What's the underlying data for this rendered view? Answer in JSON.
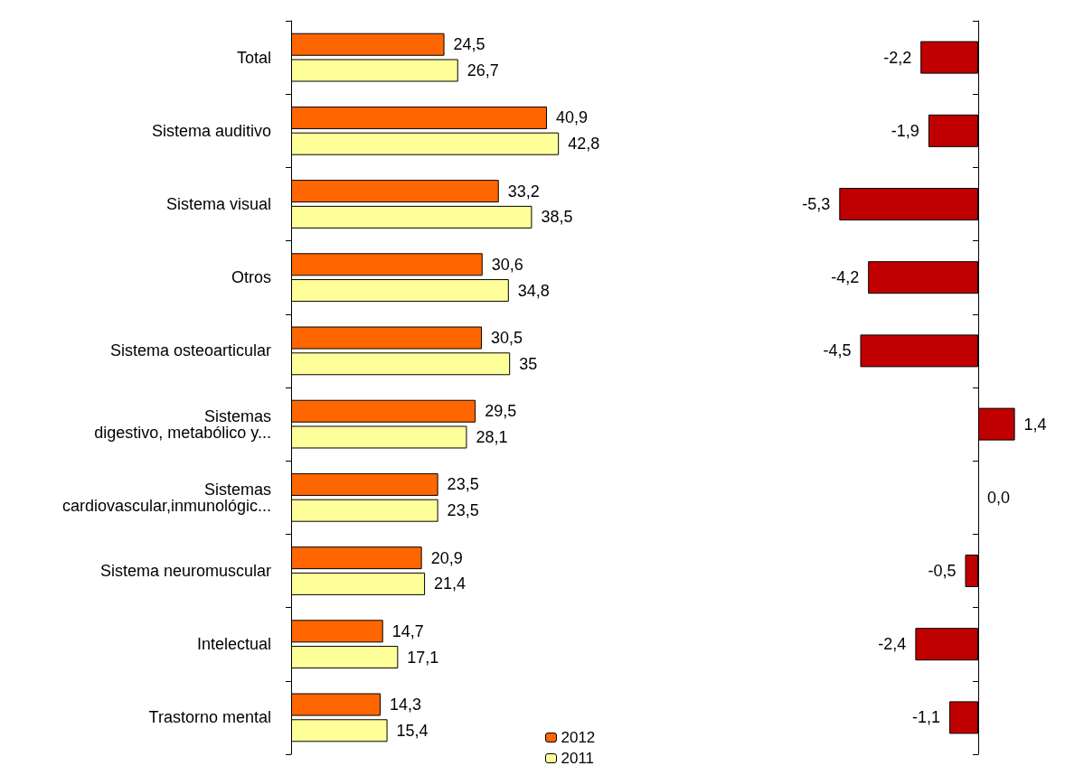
{
  "chart_data": [
    {
      "type": "bar",
      "orientation": "horizontal",
      "categories": [
        "Total",
        "Sistema auditivo",
        "Sistema visual",
        "Otros",
        "Sistema osteoarticular",
        "Sistemas\ndigestivo, metabólico y...",
        "Sistemas\ncardiovascular,inmunológic...",
        "Sistema neuromuscular",
        "Intelectual",
        "Trastorno mental"
      ],
      "series": [
        {
          "name": "2012",
          "color": "#ff6600",
          "values": [
            24.5,
            40.9,
            33.2,
            30.6,
            30.5,
            29.5,
            23.5,
            20.9,
            14.7,
            14.3
          ],
          "value_labels": [
            "24,5",
            "40,9",
            "33,2",
            "30,6",
            "30,5",
            "29,5",
            "23,5",
            "20,9",
            "14,7",
            "14,3"
          ]
        },
        {
          "name": "2011",
          "color": "#ffff99",
          "values": [
            26.7,
            42.8,
            38.5,
            34.8,
            35,
            28.1,
            23.5,
            21.4,
            17.1,
            15.4
          ],
          "value_labels": [
            "26,7",
            "42,8",
            "38,5",
            "34,8",
            "35",
            "28,1",
            "23,5",
            "21,4",
            "17,1",
            "15,4"
          ]
        }
      ],
      "legend": "bottom",
      "tick_labels": "y",
      "grid": false
    },
    {
      "type": "bar",
      "orientation": "horizontal",
      "categories": [
        null,
        null,
        null,
        null,
        null,
        null,
        null,
        null,
        null,
        null
      ],
      "series": [
        {
          "color": "#c00000",
          "values": [
            -2.2,
            -1.9,
            -5.3,
            -4.2,
            -4.5,
            1.4,
            0.0,
            -0.5,
            -2.4,
            -1.1
          ],
          "value_labels": [
            "-2,2",
            "-1,9",
            "-5,3",
            "-4,2",
            "-4,5",
            "1,4",
            "0,0",
            "-0,5",
            "-2,4",
            "-1,1"
          ]
        }
      ],
      "legend": false,
      "tick_labels": false,
      "grid": false
    }
  ]
}
